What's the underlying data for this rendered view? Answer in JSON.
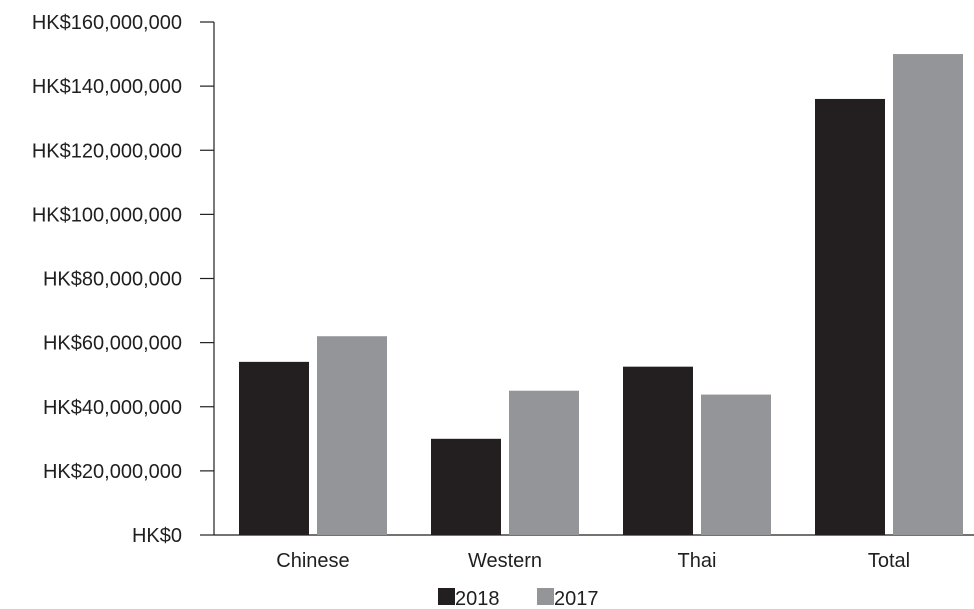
{
  "chart_data": {
    "type": "bar",
    "categories": [
      "Chinese",
      "Western",
      "Thai",
      "Total"
    ],
    "series": [
      {
        "name": "2018",
        "color": "#231f20",
        "values": [
          54000000,
          30000000,
          52500000,
          136000000
        ]
      },
      {
        "name": "2017",
        "color": "#939598",
        "values": [
          62000000,
          45000000,
          43800000,
          150000000
        ]
      }
    ],
    "ylim": [
      0,
      160000000
    ],
    "y_ticks": [
      0,
      20000000,
      40000000,
      60000000,
      80000000,
      100000000,
      120000000,
      140000000,
      160000000
    ],
    "y_tick_labels": [
      "HK$0",
      "HK$20,000,000",
      "HK$40,000,000",
      "HK$60,000,000",
      "HK$80,000,000",
      "HK$100,000,000",
      "HK$120,000,000",
      "HK$140,000,000",
      "HK$160,000,000"
    ],
    "title": "",
    "xlabel": "",
    "ylabel": "",
    "grid": false,
    "legend_position": "bottom-center"
  }
}
